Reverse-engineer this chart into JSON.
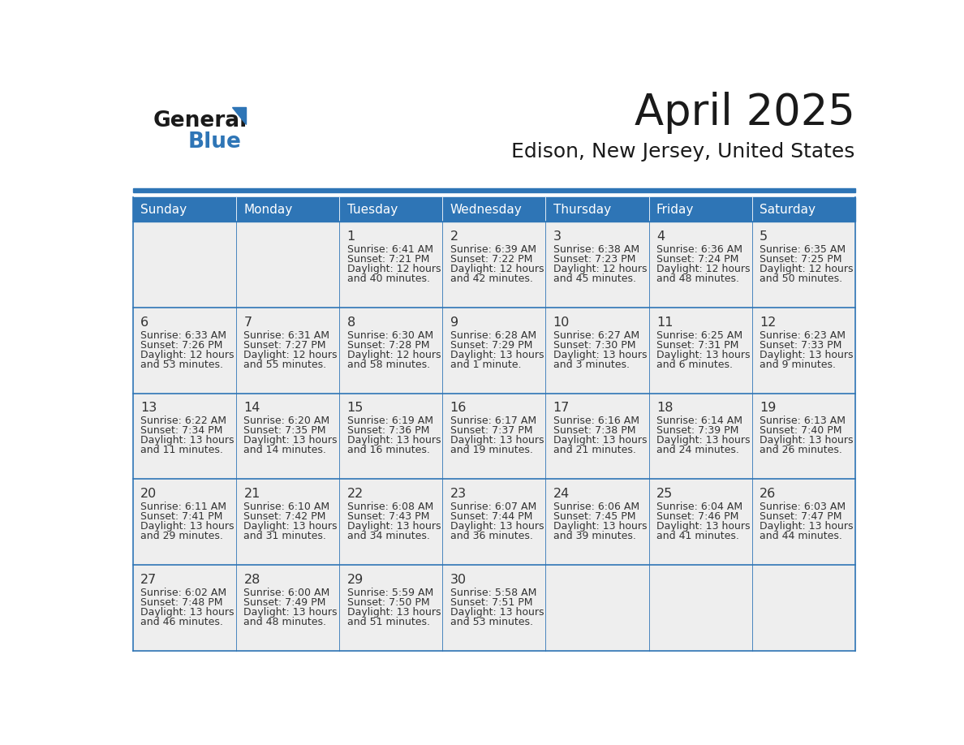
{
  "title": "April 2025",
  "subtitle": "Edison, New Jersey, United States",
  "header_bg_color": "#2E75B6",
  "header_text_color": "#FFFFFF",
  "cell_bg_color": "#EEEEEE",
  "cell_text_color": "#333333",
  "day_num_color": "#333333",
  "grid_color": "#2E75B6",
  "row_divider_color": "#2E75B6",
  "days_of_week": [
    "Sunday",
    "Monday",
    "Tuesday",
    "Wednesday",
    "Thursday",
    "Friday",
    "Saturday"
  ],
  "logo_color1": "#1a1a1a",
  "logo_color2": "#2E75B6",
  "weeks": [
    [
      {
        "day": "",
        "sunrise": "",
        "sunset": "",
        "daylight": ""
      },
      {
        "day": "",
        "sunrise": "",
        "sunset": "",
        "daylight": ""
      },
      {
        "day": "1",
        "sunrise": "6:41 AM",
        "sunset": "7:21 PM",
        "daylight": "12 hours\nand 40 minutes."
      },
      {
        "day": "2",
        "sunrise": "6:39 AM",
        "sunset": "7:22 PM",
        "daylight": "12 hours\nand 42 minutes."
      },
      {
        "day": "3",
        "sunrise": "6:38 AM",
        "sunset": "7:23 PM",
        "daylight": "12 hours\nand 45 minutes."
      },
      {
        "day": "4",
        "sunrise": "6:36 AM",
        "sunset": "7:24 PM",
        "daylight": "12 hours\nand 48 minutes."
      },
      {
        "day": "5",
        "sunrise": "6:35 AM",
        "sunset": "7:25 PM",
        "daylight": "12 hours\nand 50 minutes."
      }
    ],
    [
      {
        "day": "6",
        "sunrise": "6:33 AM",
        "sunset": "7:26 PM",
        "daylight": "12 hours\nand 53 minutes."
      },
      {
        "day": "7",
        "sunrise": "6:31 AM",
        "sunset": "7:27 PM",
        "daylight": "12 hours\nand 55 minutes."
      },
      {
        "day": "8",
        "sunrise": "6:30 AM",
        "sunset": "7:28 PM",
        "daylight": "12 hours\nand 58 minutes."
      },
      {
        "day": "9",
        "sunrise": "6:28 AM",
        "sunset": "7:29 PM",
        "daylight": "13 hours\nand 1 minute."
      },
      {
        "day": "10",
        "sunrise": "6:27 AM",
        "sunset": "7:30 PM",
        "daylight": "13 hours\nand 3 minutes."
      },
      {
        "day": "11",
        "sunrise": "6:25 AM",
        "sunset": "7:31 PM",
        "daylight": "13 hours\nand 6 minutes."
      },
      {
        "day": "12",
        "sunrise": "6:23 AM",
        "sunset": "7:33 PM",
        "daylight": "13 hours\nand 9 minutes."
      }
    ],
    [
      {
        "day": "13",
        "sunrise": "6:22 AM",
        "sunset": "7:34 PM",
        "daylight": "13 hours\nand 11 minutes."
      },
      {
        "day": "14",
        "sunrise": "6:20 AM",
        "sunset": "7:35 PM",
        "daylight": "13 hours\nand 14 minutes."
      },
      {
        "day": "15",
        "sunrise": "6:19 AM",
        "sunset": "7:36 PM",
        "daylight": "13 hours\nand 16 minutes."
      },
      {
        "day": "16",
        "sunrise": "6:17 AM",
        "sunset": "7:37 PM",
        "daylight": "13 hours\nand 19 minutes."
      },
      {
        "day": "17",
        "sunrise": "6:16 AM",
        "sunset": "7:38 PM",
        "daylight": "13 hours\nand 21 minutes."
      },
      {
        "day": "18",
        "sunrise": "6:14 AM",
        "sunset": "7:39 PM",
        "daylight": "13 hours\nand 24 minutes."
      },
      {
        "day": "19",
        "sunrise": "6:13 AM",
        "sunset": "7:40 PM",
        "daylight": "13 hours\nand 26 minutes."
      }
    ],
    [
      {
        "day": "20",
        "sunrise": "6:11 AM",
        "sunset": "7:41 PM",
        "daylight": "13 hours\nand 29 minutes."
      },
      {
        "day": "21",
        "sunrise": "6:10 AM",
        "sunset": "7:42 PM",
        "daylight": "13 hours\nand 31 minutes."
      },
      {
        "day": "22",
        "sunrise": "6:08 AM",
        "sunset": "7:43 PM",
        "daylight": "13 hours\nand 34 minutes."
      },
      {
        "day": "23",
        "sunrise": "6:07 AM",
        "sunset": "7:44 PM",
        "daylight": "13 hours\nand 36 minutes."
      },
      {
        "day": "24",
        "sunrise": "6:06 AM",
        "sunset": "7:45 PM",
        "daylight": "13 hours\nand 39 minutes."
      },
      {
        "day": "25",
        "sunrise": "6:04 AM",
        "sunset": "7:46 PM",
        "daylight": "13 hours\nand 41 minutes."
      },
      {
        "day": "26",
        "sunrise": "6:03 AM",
        "sunset": "7:47 PM",
        "daylight": "13 hours\nand 44 minutes."
      }
    ],
    [
      {
        "day": "27",
        "sunrise": "6:02 AM",
        "sunset": "7:48 PM",
        "daylight": "13 hours\nand 46 minutes."
      },
      {
        "day": "28",
        "sunrise": "6:00 AM",
        "sunset": "7:49 PM",
        "daylight": "13 hours\nand 48 minutes."
      },
      {
        "day": "29",
        "sunrise": "5:59 AM",
        "sunset": "7:50 PM",
        "daylight": "13 hours\nand 51 minutes."
      },
      {
        "day": "30",
        "sunrise": "5:58 AM",
        "sunset": "7:51 PM",
        "daylight": "13 hours\nand 53 minutes."
      },
      {
        "day": "",
        "sunrise": "",
        "sunset": "",
        "daylight": ""
      },
      {
        "day": "",
        "sunrise": "",
        "sunset": "",
        "daylight": ""
      },
      {
        "day": "",
        "sunrise": "",
        "sunset": "",
        "daylight": ""
      }
    ]
  ]
}
